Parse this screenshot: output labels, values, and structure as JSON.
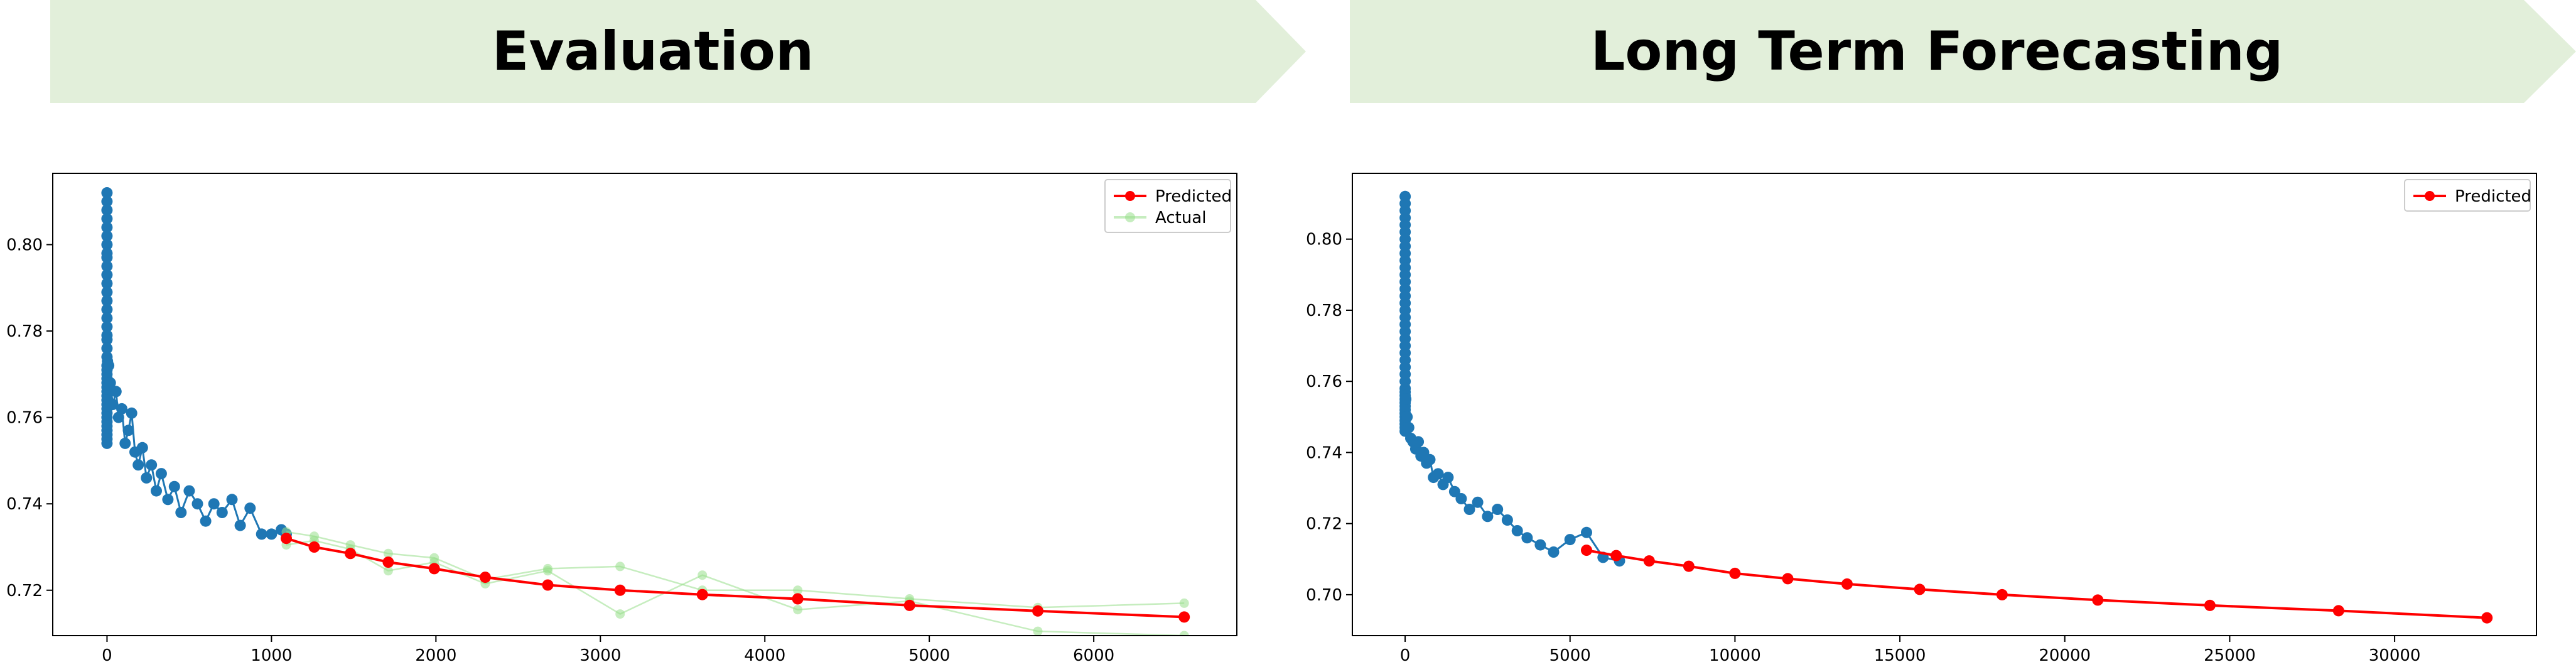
{
  "banners": {
    "left": "Evaluation",
    "right": "Long Term Forecasting"
  },
  "colors": {
    "banner_fill": "#e2efda",
    "history": "#1f77b4",
    "predicted": "#ff0000",
    "actual": "#98df8a"
  },
  "chart_data": [
    {
      "type": "line",
      "title": "",
      "xlabel": "",
      "ylabel": "",
      "xlim": [
        -330,
        6870
      ],
      "ylim": [
        0.7095,
        0.8165
      ],
      "xticks": [
        0,
        1000,
        2000,
        3000,
        4000,
        5000,
        6000
      ],
      "yticks": [
        0.72,
        0.74,
        0.76,
        0.78,
        0.8
      ],
      "grid": false,
      "legend": {
        "placement": "top-right",
        "entries": [
          "Predicted",
          "Actual"
        ]
      },
      "series": [
        {
          "name": "",
          "color": "#1f77b4",
          "x": [
            0,
            0,
            0,
            0,
            0,
            0,
            0,
            0,
            0,
            0,
            0,
            0,
            0,
            0,
            0,
            0,
            0,
            0,
            0,
            0,
            0,
            0,
            0,
            0,
            0,
            0,
            0,
            0,
            0,
            0,
            0,
            0,
            0,
            0,
            0,
            0,
            0,
            0,
            0,
            0,
            3,
            10,
            20,
            35,
            55,
            70,
            90,
            110,
            130,
            150,
            170,
            190,
            215,
            240,
            270,
            300,
            330,
            370,
            410,
            450,
            500,
            550,
            600,
            650,
            700,
            760,
            810,
            870,
            940,
            1000,
            1060,
            1090
          ],
          "y": [
            0.812,
            0.81,
            0.808,
            0.806,
            0.804,
            0.802,
            0.8,
            0.798,
            0.797,
            0.795,
            0.793,
            0.791,
            0.789,
            0.787,
            0.785,
            0.783,
            0.781,
            0.779,
            0.778,
            0.776,
            0.774,
            0.772,
            0.771,
            0.77,
            0.769,
            0.768,
            0.767,
            0.766,
            0.765,
            0.764,
            0.763,
            0.762,
            0.761,
            0.76,
            0.759,
            0.758,
            0.757,
            0.756,
            0.755,
            0.754,
            0.773,
            0.772,
            0.768,
            0.763,
            0.766,
            0.76,
            0.762,
            0.754,
            0.757,
            0.761,
            0.752,
            0.749,
            0.753,
            0.746,
            0.749,
            0.743,
            0.747,
            0.741,
            0.744,
            0.738,
            0.743,
            0.74,
            0.736,
            0.74,
            0.738,
            0.741,
            0.735,
            0.739,
            0.733,
            0.733,
            0.734,
            0.733
          ]
        },
        {
          "name": "Actual",
          "color": "#98df8a",
          "x": [
            1090,
            1260,
            1480,
            1710,
            1990,
            2300,
            2680,
            3120,
            3620,
            4200,
            4880,
            5660,
            6550
          ],
          "y": [
            0.7305,
            0.7315,
            0.7295,
            0.7245,
            0.7265,
            0.7215,
            0.7245,
            0.7145,
            0.7235,
            0.7155,
            0.7175,
            0.7105,
            0.7095
          ]
        },
        {
          "name": "Actual",
          "color": "#98df8a",
          "x": [
            1090,
            1260,
            1480,
            1710,
            1990,
            2300,
            2680,
            3120,
            3620,
            4200,
            4880,
            5660,
            6550
          ],
          "y": [
            0.7335,
            0.7325,
            0.7305,
            0.7285,
            0.7275,
            0.7225,
            0.725,
            0.7255,
            0.72,
            0.72,
            0.718,
            0.716,
            0.717
          ]
        },
        {
          "name": "Predicted",
          "color": "#ff0000",
          "x": [
            1090,
            1260,
            1480,
            1710,
            1990,
            2300,
            2680,
            3120,
            3620,
            4200,
            4880,
            5660,
            6550
          ],
          "y": [
            0.732,
            0.73,
            0.7285,
            0.7265,
            0.725,
            0.723,
            0.7212,
            0.72,
            0.719,
            0.718,
            0.7165,
            0.7152,
            0.7138
          ]
        }
      ]
    },
    {
      "type": "line",
      "title": "",
      "xlabel": "",
      "ylabel": "",
      "xlim": [
        -1600,
        34300
      ],
      "ylim": [
        0.6885,
        0.8185
      ],
      "xticks": [
        0,
        5000,
        10000,
        15000,
        20000,
        25000,
        30000
      ],
      "yticks": [
        0.7,
        0.72,
        0.74,
        0.76,
        0.78,
        0.8
      ],
      "grid": false,
      "legend": {
        "placement": "top-right",
        "entries": [
          "Predicted"
        ]
      },
      "series": [
        {
          "name": "",
          "color": "#1f77b4",
          "x": [
            0,
            0,
            0,
            0,
            0,
            0,
            0,
            0,
            0,
            0,
            0,
            0,
            0,
            0,
            0,
            0,
            0,
            0,
            0,
            0,
            0,
            0,
            0,
            0,
            0,
            0,
            0,
            0,
            0,
            0,
            0,
            0,
            0,
            0,
            0,
            0,
            0,
            0,
            0,
            0,
            20,
            60,
            110,
            170,
            240,
            320,
            400,
            480,
            560,
            650,
            750,
            860,
            1000,
            1150,
            1300,
            1500,
            1700,
            1950,
            2200,
            2500,
            2800,
            3100,
            3400,
            3700,
            4100,
            4500,
            5000,
            5500,
            6000,
            6500
          ],
          "y": [
            0.812,
            0.81,
            0.808,
            0.806,
            0.804,
            0.802,
            0.8,
            0.798,
            0.796,
            0.794,
            0.792,
            0.79,
            0.788,
            0.786,
            0.784,
            0.782,
            0.78,
            0.778,
            0.776,
            0.774,
            0.772,
            0.77,
            0.768,
            0.766,
            0.764,
            0.762,
            0.76,
            0.758,
            0.757,
            0.756,
            0.755,
            0.754,
            0.753,
            0.752,
            0.751,
            0.75,
            0.749,
            0.748,
            0.747,
            0.746,
            0.755,
            0.75,
            0.747,
            0.744,
            0.743,
            0.741,
            0.743,
            0.739,
            0.74,
            0.737,
            0.738,
            0.733,
            0.734,
            0.731,
            0.733,
            0.729,
            0.727,
            0.724,
            0.726,
            0.722,
            0.724,
            0.721,
            0.718,
            0.716,
            0.714,
            0.712,
            0.7155,
            0.7175,
            0.7105,
            0.7095
          ]
        },
        {
          "name": "Predicted",
          "color": "#ff0000",
          "x": [
            5500,
            6400,
            7400,
            8600,
            10000,
            11600,
            13400,
            15600,
            18100,
            21000,
            24400,
            28300,
            32800
          ],
          "y": [
            0.7125,
            0.711,
            0.7095,
            0.708,
            0.706,
            0.7045,
            0.703,
            0.7015,
            0.7,
            0.6985,
            0.697,
            0.6955,
            0.6935
          ]
        }
      ]
    }
  ]
}
